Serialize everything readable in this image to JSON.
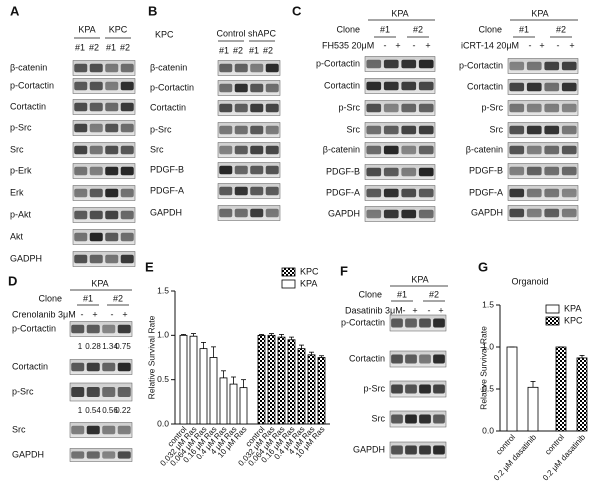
{
  "blots": {
    "A": {
      "letter": "A",
      "groups": [
        "KPA",
        "KPC"
      ],
      "lanes": [
        "#1",
        "#2",
        "#1",
        "#2"
      ],
      "rows": [
        "β-catenin",
        "p-Cortactin",
        "Cortactin",
        "p-Src",
        "Src",
        "p-Erk",
        "Erk",
        "p-Akt",
        "Akt",
        "GADPH"
      ]
    },
    "B": {
      "letter": "B",
      "cell_line": "KPC",
      "groups": [
        "Control",
        "shAPC"
      ],
      "lanes": [
        "#1",
        "#2",
        "#1",
        "#2"
      ],
      "rows": [
        "β-catenin",
        "p-Cortactin",
        "Cortactin",
        "p-Src",
        "Src",
        "PDGF-B",
        "PDGF-A",
        "GAPDH"
      ]
    },
    "C": {
      "letter": "C",
      "parts": [
        {
          "group": "KPA",
          "clone_label": "Clone",
          "clones": [
            "#1",
            "#2"
          ],
          "treatment": "FH535 20μM",
          "signs": [
            "-",
            "+",
            "-",
            "+"
          ],
          "rows": [
            "p-Cortactin",
            "Cortactin",
            "p-Src",
            "Src",
            "β-catenin",
            "PDGF-B",
            "PDGF-A",
            "GAPDH"
          ]
        },
        {
          "group": "KPA",
          "clone_label": "Clone",
          "clones": [
            "#1",
            "#2"
          ],
          "treatment": "iCRT-14 20μM",
          "signs": [
            "-",
            "+",
            "-",
            "+"
          ],
          "rows": [
            "p-Cortactin",
            "Cortactin",
            "p-Src",
            "Src",
            "β-catenin",
            "PDGF-B",
            "PDGF-A",
            "GAPDH"
          ]
        }
      ]
    },
    "D": {
      "letter": "D",
      "group": "KPA",
      "clone_label": "Clone",
      "clones": [
        "#1",
        "#2"
      ],
      "treatment": "Crenolanib 3μM",
      "signs": [
        "-",
        "+",
        "-",
        "+"
      ],
      "rows": [
        "p-Cortactin",
        "Cortactin",
        "p-Src",
        "Src",
        "GAPDH"
      ],
      "quantification": [
        [
          1,
          0.28,
          1.34,
          0.75
        ],
        [
          1,
          0.54,
          0.56,
          0.22
        ]
      ]
    },
    "F": {
      "letter": "F",
      "group": "KPA",
      "clone_label": "Clone",
      "clones": [
        "#1",
        "#2"
      ],
      "treatment": "Dasatinib 3μM",
      "signs": [
        "-",
        "+",
        "-",
        "+"
      ],
      "rows": [
        "p-Cortactin",
        "Cortactin",
        "p-Src",
        "Src",
        "GAPDH"
      ]
    }
  },
  "chart_data": [
    {
      "panel": "E",
      "type": "bar",
      "y_label": "Relative Survival Rate",
      "categories": [
        "control",
        "0.032 μM Ras",
        "0.064 μM Ras",
        "0.16 μM Ras",
        "0.4 μM Ras",
        "4 μM Ras",
        "10 μM Ras"
      ],
      "series": [
        {
          "name": "KPC",
          "color": "#000000",
          "pattern": "checker",
          "values": [
            1.0,
            1.0,
            0.98,
            0.95,
            0.85,
            0.78,
            0.75
          ],
          "errors": [
            0.01,
            0.02,
            0.03,
            0.03,
            0.04,
            0.03,
            0.02
          ]
        },
        {
          "name": "KPA",
          "color": "#ffffff",
          "values": [
            1.0,
            0.99,
            0.85,
            0.75,
            0.52,
            0.45,
            0.41
          ],
          "errors": [
            0.01,
            0.03,
            0.07,
            0.12,
            0.08,
            0.08,
            0.09
          ]
        }
      ],
      "ylim": [
        0,
        1.5
      ],
      "yticks": [
        {
          "value": 0,
          "label": "0.0"
        },
        {
          "value": 0.5,
          "label": "0.5"
        },
        {
          "value": 1,
          "label": "1.0"
        },
        {
          "value": 1.5,
          "label": "1.5"
        }
      ],
      "legend": "top-right"
    },
    {
      "panel": "G",
      "type": "bar",
      "title": "Organoid",
      "y_label": "Relative Survival Rate",
      "categories": [
        "control",
        "0.2 μM dasatinib"
      ],
      "series": [
        {
          "name": "KPA",
          "color": "#ffffff",
          "values": [
            1.0,
            0.52
          ],
          "errors": [
            0,
            0.07
          ]
        },
        {
          "name": "KPC",
          "color": "#000000",
          "pattern": "checker",
          "values": [
            1.0,
            0.87
          ],
          "errors": [
            0,
            0.03
          ]
        }
      ],
      "ylim": [
        0,
        1.5
      ],
      "yticks": [
        {
          "value": 0,
          "label": "0.0"
        },
        {
          "value": 0.5,
          "label": "0.5"
        },
        {
          "value": 1,
          "label": "1.0"
        },
        {
          "value": 1.5,
          "label": "1.5"
        }
      ],
      "legend": "top-right"
    }
  ]
}
